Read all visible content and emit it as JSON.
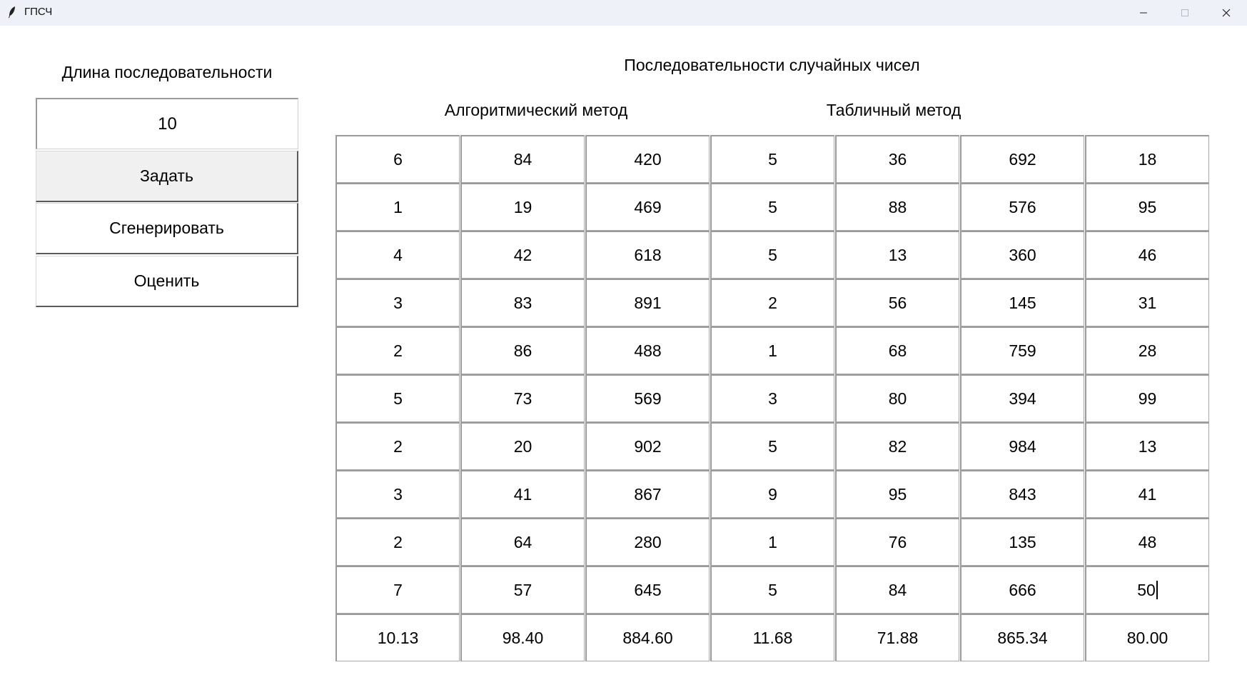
{
  "window": {
    "title": "ГПСЧ",
    "app_icon": "feather-icon",
    "controls": [
      "minimize-icon",
      "maximize-icon",
      "close-icon"
    ]
  },
  "left_panel": {
    "length_label": "Длина последовательности",
    "length_value": "10",
    "set_button": "Задать",
    "generate_button": "Сгенерировать",
    "evaluate_button": "Оценить"
  },
  "right_panel": {
    "title": "Последовательности случайных чисел",
    "algorithmic_heading": "Алгоритмический метод",
    "table_heading": "Табличный метод",
    "rows": [
      [
        "6",
        "84",
        "420",
        "5",
        "36",
        "692",
        "18"
      ],
      [
        "1",
        "19",
        "469",
        "5",
        "88",
        "576",
        "95"
      ],
      [
        "4",
        "42",
        "618",
        "5",
        "13",
        "360",
        "46"
      ],
      [
        "3",
        "83",
        "891",
        "2",
        "56",
        "145",
        "31"
      ],
      [
        "2",
        "86",
        "488",
        "1",
        "68",
        "759",
        "28"
      ],
      [
        "5",
        "73",
        "569",
        "3",
        "80",
        "394",
        "99"
      ],
      [
        "2",
        "20",
        "902",
        "5",
        "82",
        "984",
        "13"
      ],
      [
        "3",
        "41",
        "867",
        "9",
        "95",
        "843",
        "41"
      ],
      [
        "2",
        "64",
        "280",
        "1",
        "76",
        "135",
        "48"
      ],
      [
        "7",
        "57",
        "645",
        "5",
        "84",
        "666",
        "50"
      ]
    ],
    "summary": [
      "10.13",
      "98.40",
      "884.60",
      "11.68",
      "71.88",
      "865.34",
      "80.00"
    ]
  }
}
